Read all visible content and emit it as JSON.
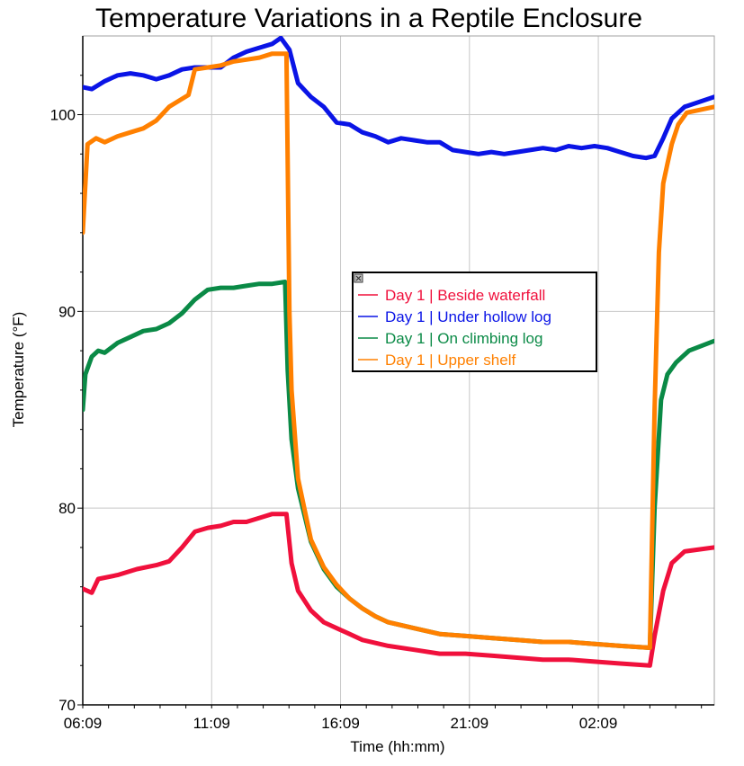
{
  "chart_data": {
    "type": "line",
    "title": "Temperature Variations in a Reptile Enclosure",
    "xlabel": "Time (hh:mm)",
    "ylabel": "Temperature (°F)",
    "xlim": [
      "06:09",
      "06:39"
    ],
    "ylim": [
      70,
      104
    ],
    "x_ticks": [
      "06:09",
      "11:09",
      "16:09",
      "21:09",
      "02:09"
    ],
    "y_ticks": [
      70,
      80,
      90,
      100
    ],
    "grid": true,
    "legend_position": "center",
    "series": [
      {
        "name": "Day 1 | Beside waterfall",
        "color": "#f0103c",
        "points": [
          [
            "06:09",
            75.9
          ],
          [
            "06:30",
            75.7
          ],
          [
            "06:45",
            76.4
          ],
          [
            "07:30",
            76.6
          ],
          [
            "08:15",
            76.9
          ],
          [
            "09:00",
            77.1
          ],
          [
            "09:30",
            77.3
          ],
          [
            "10:00",
            78.0
          ],
          [
            "10:30",
            78.8
          ],
          [
            "11:00",
            79.0
          ],
          [
            "11:30",
            79.1
          ],
          [
            "12:00",
            79.3
          ],
          [
            "12:30",
            79.3
          ],
          [
            "13:00",
            79.5
          ],
          [
            "13:30",
            79.7
          ],
          [
            "14:03",
            79.7
          ],
          [
            "14:15",
            77.2
          ],
          [
            "14:30",
            75.8
          ],
          [
            "15:00",
            74.8
          ],
          [
            "15:30",
            74.2
          ],
          [
            "16:00",
            73.9
          ],
          [
            "16:30",
            73.6
          ],
          [
            "17:00",
            73.3
          ],
          [
            "18:00",
            73.0
          ],
          [
            "19:00",
            72.8
          ],
          [
            "20:00",
            72.6
          ],
          [
            "21:00",
            72.6
          ],
          [
            "22:00",
            72.5
          ],
          [
            "23:00",
            72.4
          ],
          [
            "00:00",
            72.3
          ],
          [
            "01:00",
            72.3
          ],
          [
            "02:00",
            72.2
          ],
          [
            "03:00",
            72.1
          ],
          [
            "04:09",
            72.0
          ],
          [
            "04:20",
            73.5
          ],
          [
            "04:40",
            75.8
          ],
          [
            "05:00",
            77.2
          ],
          [
            "05:30",
            77.8
          ],
          [
            "06:39",
            78.0
          ]
        ]
      },
      {
        "name": "Day 1 | Under hollow log",
        "color": "#0a14e6",
        "points": [
          [
            "06:09",
            101.4
          ],
          [
            "06:30",
            101.3
          ],
          [
            "07:00",
            101.7
          ],
          [
            "07:30",
            102.0
          ],
          [
            "08:00",
            102.1
          ],
          [
            "08:30",
            102.0
          ],
          [
            "09:00",
            101.8
          ],
          [
            "09:30",
            102.0
          ],
          [
            "10:00",
            102.3
          ],
          [
            "10:30",
            102.4
          ],
          [
            "11:00",
            102.4
          ],
          [
            "11:30",
            102.4
          ],
          [
            "12:00",
            102.9
          ],
          [
            "12:30",
            103.2
          ],
          [
            "13:00",
            103.4
          ],
          [
            "13:30",
            103.6
          ],
          [
            "13:50",
            103.9
          ],
          [
            "14:10",
            103.3
          ],
          [
            "14:30",
            101.6
          ],
          [
            "15:00",
            100.9
          ],
          [
            "15:30",
            100.4
          ],
          [
            "16:00",
            99.6
          ],
          [
            "16:30",
            99.5
          ],
          [
            "17:00",
            99.1
          ],
          [
            "17:30",
            98.9
          ],
          [
            "18:00",
            98.6
          ],
          [
            "18:30",
            98.8
          ],
          [
            "19:00",
            98.7
          ],
          [
            "19:30",
            98.6
          ],
          [
            "20:00",
            98.6
          ],
          [
            "20:30",
            98.2
          ],
          [
            "21:00",
            98.1
          ],
          [
            "21:30",
            98.0
          ],
          [
            "22:00",
            98.1
          ],
          [
            "22:30",
            98.0
          ],
          [
            "23:00",
            98.1
          ],
          [
            "23:30",
            98.2
          ],
          [
            "00:00",
            98.3
          ],
          [
            "00:30",
            98.2
          ],
          [
            "01:00",
            98.4
          ],
          [
            "01:30",
            98.3
          ],
          [
            "02:00",
            98.4
          ],
          [
            "02:30",
            98.3
          ],
          [
            "03:00",
            98.1
          ],
          [
            "03:30",
            97.9
          ],
          [
            "04:00",
            97.8
          ],
          [
            "04:20",
            97.9
          ],
          [
            "04:40",
            98.8
          ],
          [
            "05:00",
            99.8
          ],
          [
            "05:30",
            100.4
          ],
          [
            "06:39",
            100.9
          ]
        ]
      },
      {
        "name": "Day 1 | On climbing log",
        "color": "#0a8a46",
        "points": [
          [
            "06:09",
            85.0
          ],
          [
            "06:15",
            86.8
          ],
          [
            "06:30",
            87.7
          ],
          [
            "06:45",
            88.0
          ],
          [
            "07:00",
            87.9
          ],
          [
            "07:30",
            88.4
          ],
          [
            "08:00",
            88.7
          ],
          [
            "08:30",
            89.0
          ],
          [
            "09:00",
            89.1
          ],
          [
            "09:30",
            89.4
          ],
          [
            "10:00",
            89.9
          ],
          [
            "10:30",
            90.6
          ],
          [
            "11:00",
            91.1
          ],
          [
            "11:30",
            91.2
          ],
          [
            "12:00",
            91.2
          ],
          [
            "12:30",
            91.3
          ],
          [
            "13:00",
            91.4
          ],
          [
            "13:30",
            91.4
          ],
          [
            "14:00",
            91.5
          ],
          [
            "14:06",
            87.0
          ],
          [
            "14:15",
            83.5
          ],
          [
            "14:30",
            81.0
          ],
          [
            "15:00",
            78.3
          ],
          [
            "15:30",
            76.9
          ],
          [
            "16:00",
            76.0
          ],
          [
            "16:30",
            75.4
          ],
          [
            "17:00",
            74.9
          ],
          [
            "17:30",
            74.5
          ],
          [
            "18:00",
            74.2
          ],
          [
            "19:00",
            73.9
          ],
          [
            "20:00",
            73.6
          ],
          [
            "21:00",
            73.5
          ],
          [
            "22:00",
            73.4
          ],
          [
            "23:00",
            73.3
          ],
          [
            "00:00",
            73.2
          ],
          [
            "01:00",
            73.2
          ],
          [
            "02:00",
            73.1
          ],
          [
            "03:00",
            73.0
          ],
          [
            "04:09",
            72.9
          ],
          [
            "04:20",
            80.0
          ],
          [
            "04:35",
            85.5
          ],
          [
            "04:50",
            86.8
          ],
          [
            "05:10",
            87.4
          ],
          [
            "05:40",
            88.0
          ],
          [
            "06:39",
            88.5
          ]
        ]
      },
      {
        "name": "Day 1 | Upper shelf",
        "color": "#ff8000",
        "points": [
          [
            "06:09",
            94.0
          ],
          [
            "06:20",
            98.5
          ],
          [
            "06:40",
            98.8
          ],
          [
            "07:00",
            98.6
          ],
          [
            "07:30",
            98.9
          ],
          [
            "08:00",
            99.1
          ],
          [
            "08:30",
            99.3
          ],
          [
            "09:00",
            99.7
          ],
          [
            "09:30",
            100.4
          ],
          [
            "10:00",
            100.8
          ],
          [
            "10:15",
            101.0
          ],
          [
            "10:30",
            102.3
          ],
          [
            "11:00",
            102.4
          ],
          [
            "11:30",
            102.5
          ],
          [
            "12:00",
            102.7
          ],
          [
            "12:30",
            102.8
          ],
          [
            "13:00",
            102.9
          ],
          [
            "13:30",
            103.1
          ],
          [
            "14:03",
            103.1
          ],
          [
            "14:10",
            90.0
          ],
          [
            "14:15",
            86.0
          ],
          [
            "14:30",
            81.5
          ],
          [
            "15:00",
            78.4
          ],
          [
            "15:30",
            77.0
          ],
          [
            "16:00",
            76.1
          ],
          [
            "16:30",
            75.4
          ],
          [
            "17:00",
            74.9
          ],
          [
            "17:30",
            74.5
          ],
          [
            "18:00",
            74.2
          ],
          [
            "19:00",
            73.9
          ],
          [
            "20:00",
            73.6
          ],
          [
            "21:00",
            73.5
          ],
          [
            "22:00",
            73.4
          ],
          [
            "23:00",
            73.3
          ],
          [
            "00:00",
            73.2
          ],
          [
            "01:00",
            73.2
          ],
          [
            "02:00",
            73.1
          ],
          [
            "03:00",
            73.0
          ],
          [
            "04:09",
            72.9
          ],
          [
            "04:20",
            85.0
          ],
          [
            "04:30",
            93.0
          ],
          [
            "04:40",
            96.5
          ],
          [
            "04:50",
            97.5
          ],
          [
            "05:00",
            98.5
          ],
          [
            "05:15",
            99.5
          ],
          [
            "05:35",
            100.1
          ],
          [
            "06:39",
            100.4
          ]
        ]
      }
    ]
  }
}
